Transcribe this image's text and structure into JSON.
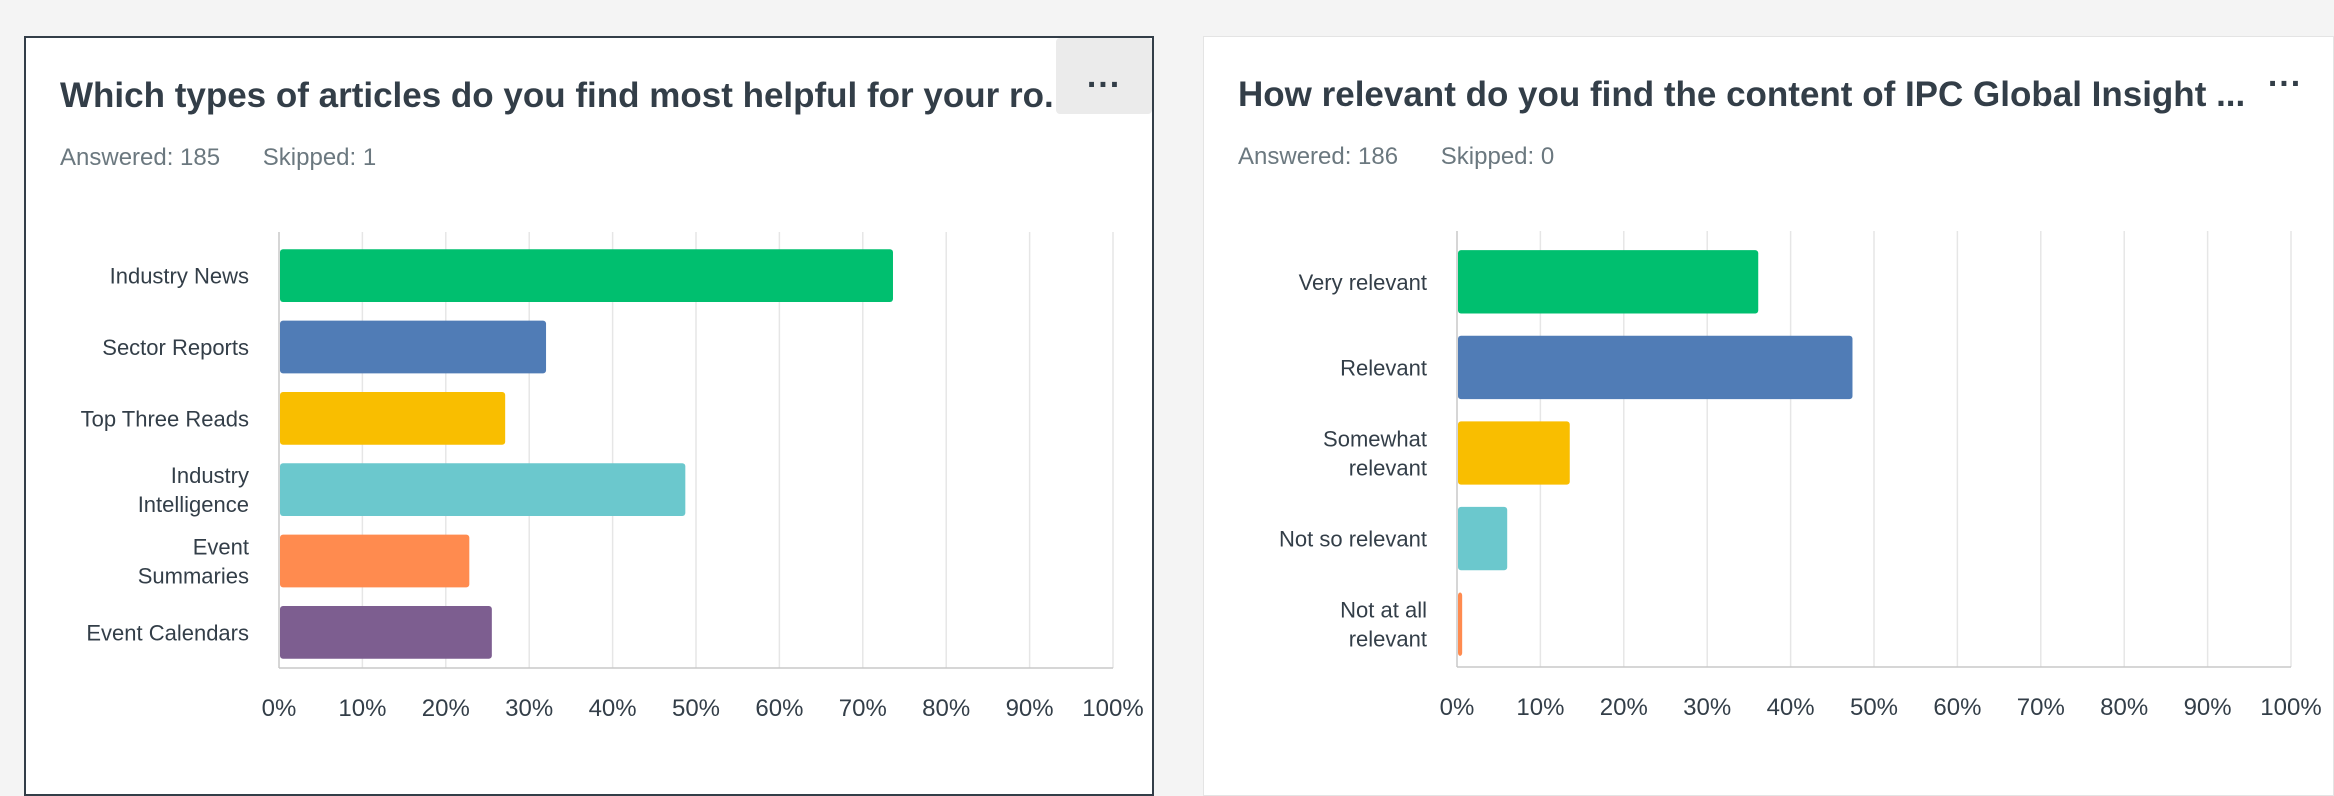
{
  "panels": [
    {
      "title": "Which types of articles do you find most helpful for your ro...",
      "answered": "Answered: 185",
      "skipped": "Skipped: 1",
      "menu_label": "...",
      "chart_data": {
        "type": "bar",
        "orientation": "horizontal",
        "categories": [
          [
            "Industry News"
          ],
          [
            "Sector Reports"
          ],
          [
            "Top Three Reads"
          ],
          [
            "Industry",
            "Intelligence"
          ],
          [
            "Event",
            "Summaries"
          ],
          [
            "Event Calendars"
          ]
        ],
        "values": [
          73.5,
          31.9,
          27.0,
          48.6,
          22.7,
          25.4
        ],
        "colors": [
          "#00bf6f",
          "#507cb6",
          "#f9be00",
          "#6bc8cd",
          "#ff8b4f",
          "#7d5e90"
        ],
        "xlim": [
          0,
          100
        ],
        "ticks": [
          "0%",
          "10%",
          "20%",
          "30%",
          "40%",
          "50%",
          "60%",
          "70%",
          "80%",
          "90%",
          "100%"
        ],
        "grid": true
      }
    },
    {
      "title": "How relevant do you find the content of IPC Global Insight ...",
      "answered": "Answered: 186",
      "skipped": "Skipped: 0",
      "menu_label": "...",
      "chart_data": {
        "type": "bar",
        "orientation": "horizontal",
        "categories": [
          [
            "Very relevant"
          ],
          [
            "Relevant"
          ],
          [
            "Somewhat",
            "relevant"
          ],
          [
            "Not so relevant"
          ],
          [
            "Not at all",
            "relevant"
          ]
        ],
        "values": [
          36.0,
          47.3,
          13.4,
          5.9,
          0.5
        ],
        "colors": [
          "#00bf6f",
          "#507cb6",
          "#f9be00",
          "#6bc8cd",
          "#ff8b4f"
        ],
        "xlim": [
          0,
          100
        ],
        "ticks": [
          "0%",
          "10%",
          "20%",
          "30%",
          "40%",
          "50%",
          "60%",
          "70%",
          "80%",
          "90%",
          "100%"
        ],
        "grid": true
      }
    }
  ]
}
